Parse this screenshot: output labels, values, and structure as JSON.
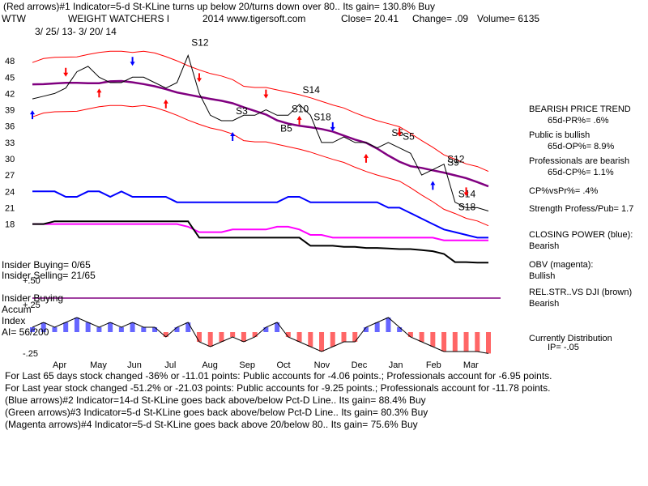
{
  "header": {
    "line1": "(Red arrows)#1 Indicator=5-d St-KLine turns up below 20/turns down over 80.. Its gain= 130.8% Buy",
    "ticker": "WTW",
    "company": "WEIGHT WATCHERS I",
    "site": "2014 www.tigersoft.com",
    "close": "Close=  20.41",
    "change": "Change= .09",
    "volume": "Volume= 6135",
    "daterange": "3/ 25/ 13- 3/ 20/ 14",
    "colors": {
      "blue": "#0000ff",
      "red": "#ff0000",
      "magenta": "#ff00ff",
      "purple": "#800080",
      "black": "#000000",
      "green": "#008000"
    }
  },
  "chart_data": {
    "type": "line",
    "title": "WEIGHT WATCHERS I",
    "price_axis": {
      "ticks": [
        "48",
        "45",
        "42",
        "39",
        "36",
        "33",
        "30",
        "27",
        "24",
        "21",
        "18"
      ],
      "ylim": [
        16,
        51
      ]
    },
    "months": [
      "Apr",
      "May",
      "Jun",
      "Jul",
      "Aug",
      "Sep",
      "Oct",
      "Nov",
      "Dec",
      "Jan",
      "Feb",
      "Mar"
    ],
    "accum_axis": {
      "ticks": [
        "+.50",
        "+.25",
        "-.25"
      ]
    },
    "signals": [
      "S12",
      "S3",
      "S14",
      "S5",
      "S10",
      "S18",
      "S5",
      "S14",
      "S12",
      "S9",
      "S18",
      "B5"
    ],
    "series": [
      {
        "name": "Price",
        "values": [
          41,
          41.5,
          42,
          43,
          46,
          47,
          45,
          44,
          44,
          45,
          45,
          44,
          43,
          44,
          49,
          42,
          38,
          37,
          37,
          38,
          38,
          39,
          38,
          38,
          40,
          38,
          33,
          33,
          34,
          33,
          33,
          32,
          33,
          32,
          31,
          27,
          28,
          29,
          22,
          21,
          21,
          20.4
        ]
      },
      {
        "name": "Closing Power",
        "values": [
          24,
          24,
          24,
          23,
          23,
          24,
          24,
          23,
          24,
          23,
          23,
          23,
          23,
          22,
          22,
          22,
          22,
          22,
          22,
          22,
          22,
          22,
          22,
          23,
          23,
          22,
          22,
          22,
          22,
          22,
          22,
          22,
          21,
          21,
          20,
          19,
          18,
          17,
          16.5,
          16,
          15.5,
          15.5
        ]
      },
      {
        "name": "OBV",
        "values": [
          18,
          18,
          18,
          18,
          18,
          18,
          18,
          18,
          18,
          18,
          18,
          18,
          18,
          18,
          17.5,
          16.5,
          16.5,
          16.5,
          17,
          17,
          17,
          17,
          17.5,
          17.5,
          17,
          16,
          16,
          15.5,
          15.5,
          15.5,
          15.5,
          15.5,
          15.5,
          15.5,
          15.5,
          15.5,
          15.5,
          15,
          15,
          15,
          15,
          15
        ]
      },
      {
        "name": "Rel Str vs DJI",
        "values": [
          18,
          18,
          18.5,
          18.5,
          18.5,
          18.5,
          18.5,
          18.5,
          18.5,
          18.5,
          18.5,
          18.5,
          18.5,
          18.5,
          18.5,
          15.5,
          15.5,
          15.5,
          15.5,
          15.5,
          15.5,
          15.5,
          15.5,
          15.5,
          15.5,
          14,
          14,
          14,
          13.8,
          13.8,
          13.6,
          13.6,
          13.5,
          13.4,
          13.4,
          13.2,
          13,
          12.5,
          11,
          11,
          10.9,
          10.9
        ]
      },
      {
        "name": "Accum Index",
        "values": [
          0.05,
          0.1,
          0.05,
          0.1,
          0.15,
          0.1,
          0.05,
          0.1,
          0.05,
          0.1,
          0.05,
          0.05,
          -0.05,
          0.05,
          0.1,
          -0.1,
          -0.15,
          -0.1,
          -0.05,
          -0.1,
          -0.05,
          0.05,
          0.1,
          -0.05,
          -0.1,
          -0.15,
          -0.2,
          -0.15,
          -0.1,
          -0.1,
          0.05,
          0.1,
          0.15,
          0.05,
          -0.05,
          -0.1,
          -0.15,
          -0.2,
          -0.2,
          -0.2,
          -0.2,
          -0.22
        ]
      }
    ]
  },
  "left_panel": {
    "insider_buying_count": "Insider Buying= 0/65",
    "insider_selling_count": "Insider Selling= 21/65",
    "insider_buying_label": "Insider Buying",
    "accum_label": "Accum",
    "index_label": "Index",
    "ai": "AI= 56/200"
  },
  "right_panel": {
    "trend_title": "BEARISH PRICE TREND",
    "pr65": "65d-PR%= .6%",
    "public": "Public is bullish",
    "op65": "65d-OP%= 8.9%",
    "professionals": "Professionals are bearish",
    "cp65": "65d-CP%= 1.1%",
    "cpvspr": "CP%vsPr%=  .4%",
    "strength": "Strength Profess/Pub= 1.7",
    "closing_power": "CLOSING POWER (blue):",
    "closing_power_val": "Bearish",
    "obv": "OBV (magenta):",
    "obv_val": "Bullish",
    "relstr": "REL.STR..VS DJI (brown)",
    "relstr_val": "Bearish",
    "distribution": "Currently Distribution",
    "ip": "IP= -.05"
  },
  "footer": {
    "line1": "For Last 65 days stock changed -36% or -11.01 points:  Public accounts for -4.06 points.;  Professionals account for -6.95 points.",
    "line2": "For Last year stock changed -51.2% or -21.03 points:  Public accounts for -9.25 points.;  Professionals account for -11.78 points.",
    "line3": "(Blue arrows)#2 Indicator=14-d St-KLine goes back above/below Pct-D Line.. Its gain= 88.4% Buy",
    "line4": "(Green arrows)#3 Indicator=5-d St-KLine goes back above/below Pct-D Line.. Its gain= 80.3% Buy",
    "line5": "(Magenta arrows)#4 Indicator=5-d St-KLine goes back above 20/below 80.. Its gain= 75.6% Buy"
  }
}
